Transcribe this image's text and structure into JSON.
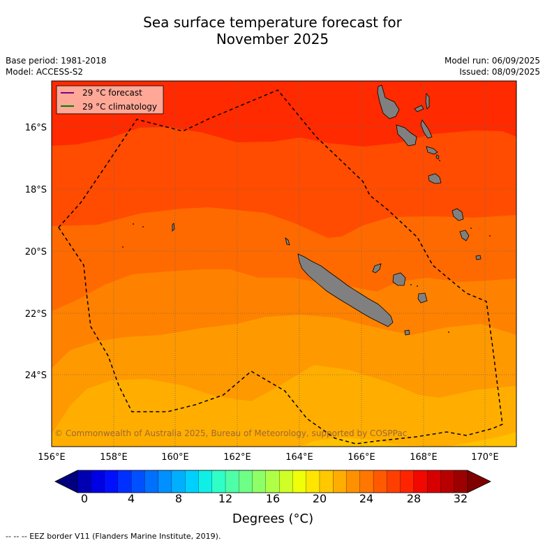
{
  "title_line1": "Sea surface temperature forecast for",
  "title_line2": "November 2025",
  "base_period": "Base period: 1981-2018",
  "model": "Model: ACCESS-S2",
  "model_run": "Model run: 06/09/2025",
  "issued": "Issued: 08/09/2025",
  "legend": {
    "forecast": "29 °C  forecast",
    "climatology": "29 °C  climatology",
    "forecast_color": "#800080",
    "climatology_color": "#008000"
  },
  "lat_labels": [
    "16°S",
    "18°S",
    "20°S",
    "22°S",
    "24°S"
  ],
  "lon_labels": [
    "156°E",
    "158°E",
    "160°E",
    "162°E",
    "164°E",
    "166°E",
    "168°E",
    "170°E"
  ],
  "colorbar": {
    "tick_labels": [
      "0",
      "4",
      "8",
      "12",
      "16",
      "20",
      "24",
      "28",
      "32"
    ],
    "title": "Degrees (°C)",
    "colors": [
      "#00007f",
      "#0000b2",
      "#0000e5",
      "#0010ff",
      "#0030ff",
      "#0050ff",
      "#0070ff",
      "#0090ff",
      "#00b0ff",
      "#00d0ff",
      "#10efe6",
      "#2fffc7",
      "#4fffa7",
      "#6fff87",
      "#8fff67",
      "#afff47",
      "#cfff27",
      "#efff07",
      "#ffe500",
      "#ffc800",
      "#ffad00",
      "#ff9100",
      "#ff7600",
      "#ff5a00",
      "#ff3f00",
      "#ff2400",
      "#f10800",
      "#d60000",
      "#b90000",
      "#9c0000",
      "#800000"
    ]
  },
  "sst_bands": [
    {
      "range": "below 26",
      "color": "#ffc100"
    },
    {
      "range": "26-26.5",
      "color": "#ffae00"
    },
    {
      "range": "26.5-27",
      "color": "#ff9900"
    },
    {
      "range": "27-27.5",
      "color": "#ff8100"
    },
    {
      "range": "27.5-28",
      "color": "#ff6a00"
    },
    {
      "range": "28-28.5",
      "color": "#ff4c00"
    },
    {
      "range": "above 28.5",
      "color": "#ff2a00"
    }
  ],
  "copyright": "© Commonwealth of Australia 2025, Bureau of Meteorology, supported by COSPPac",
  "footer": "--  --  -- EEZ border V11 (Flanders Marine Institute, 2019)."
}
